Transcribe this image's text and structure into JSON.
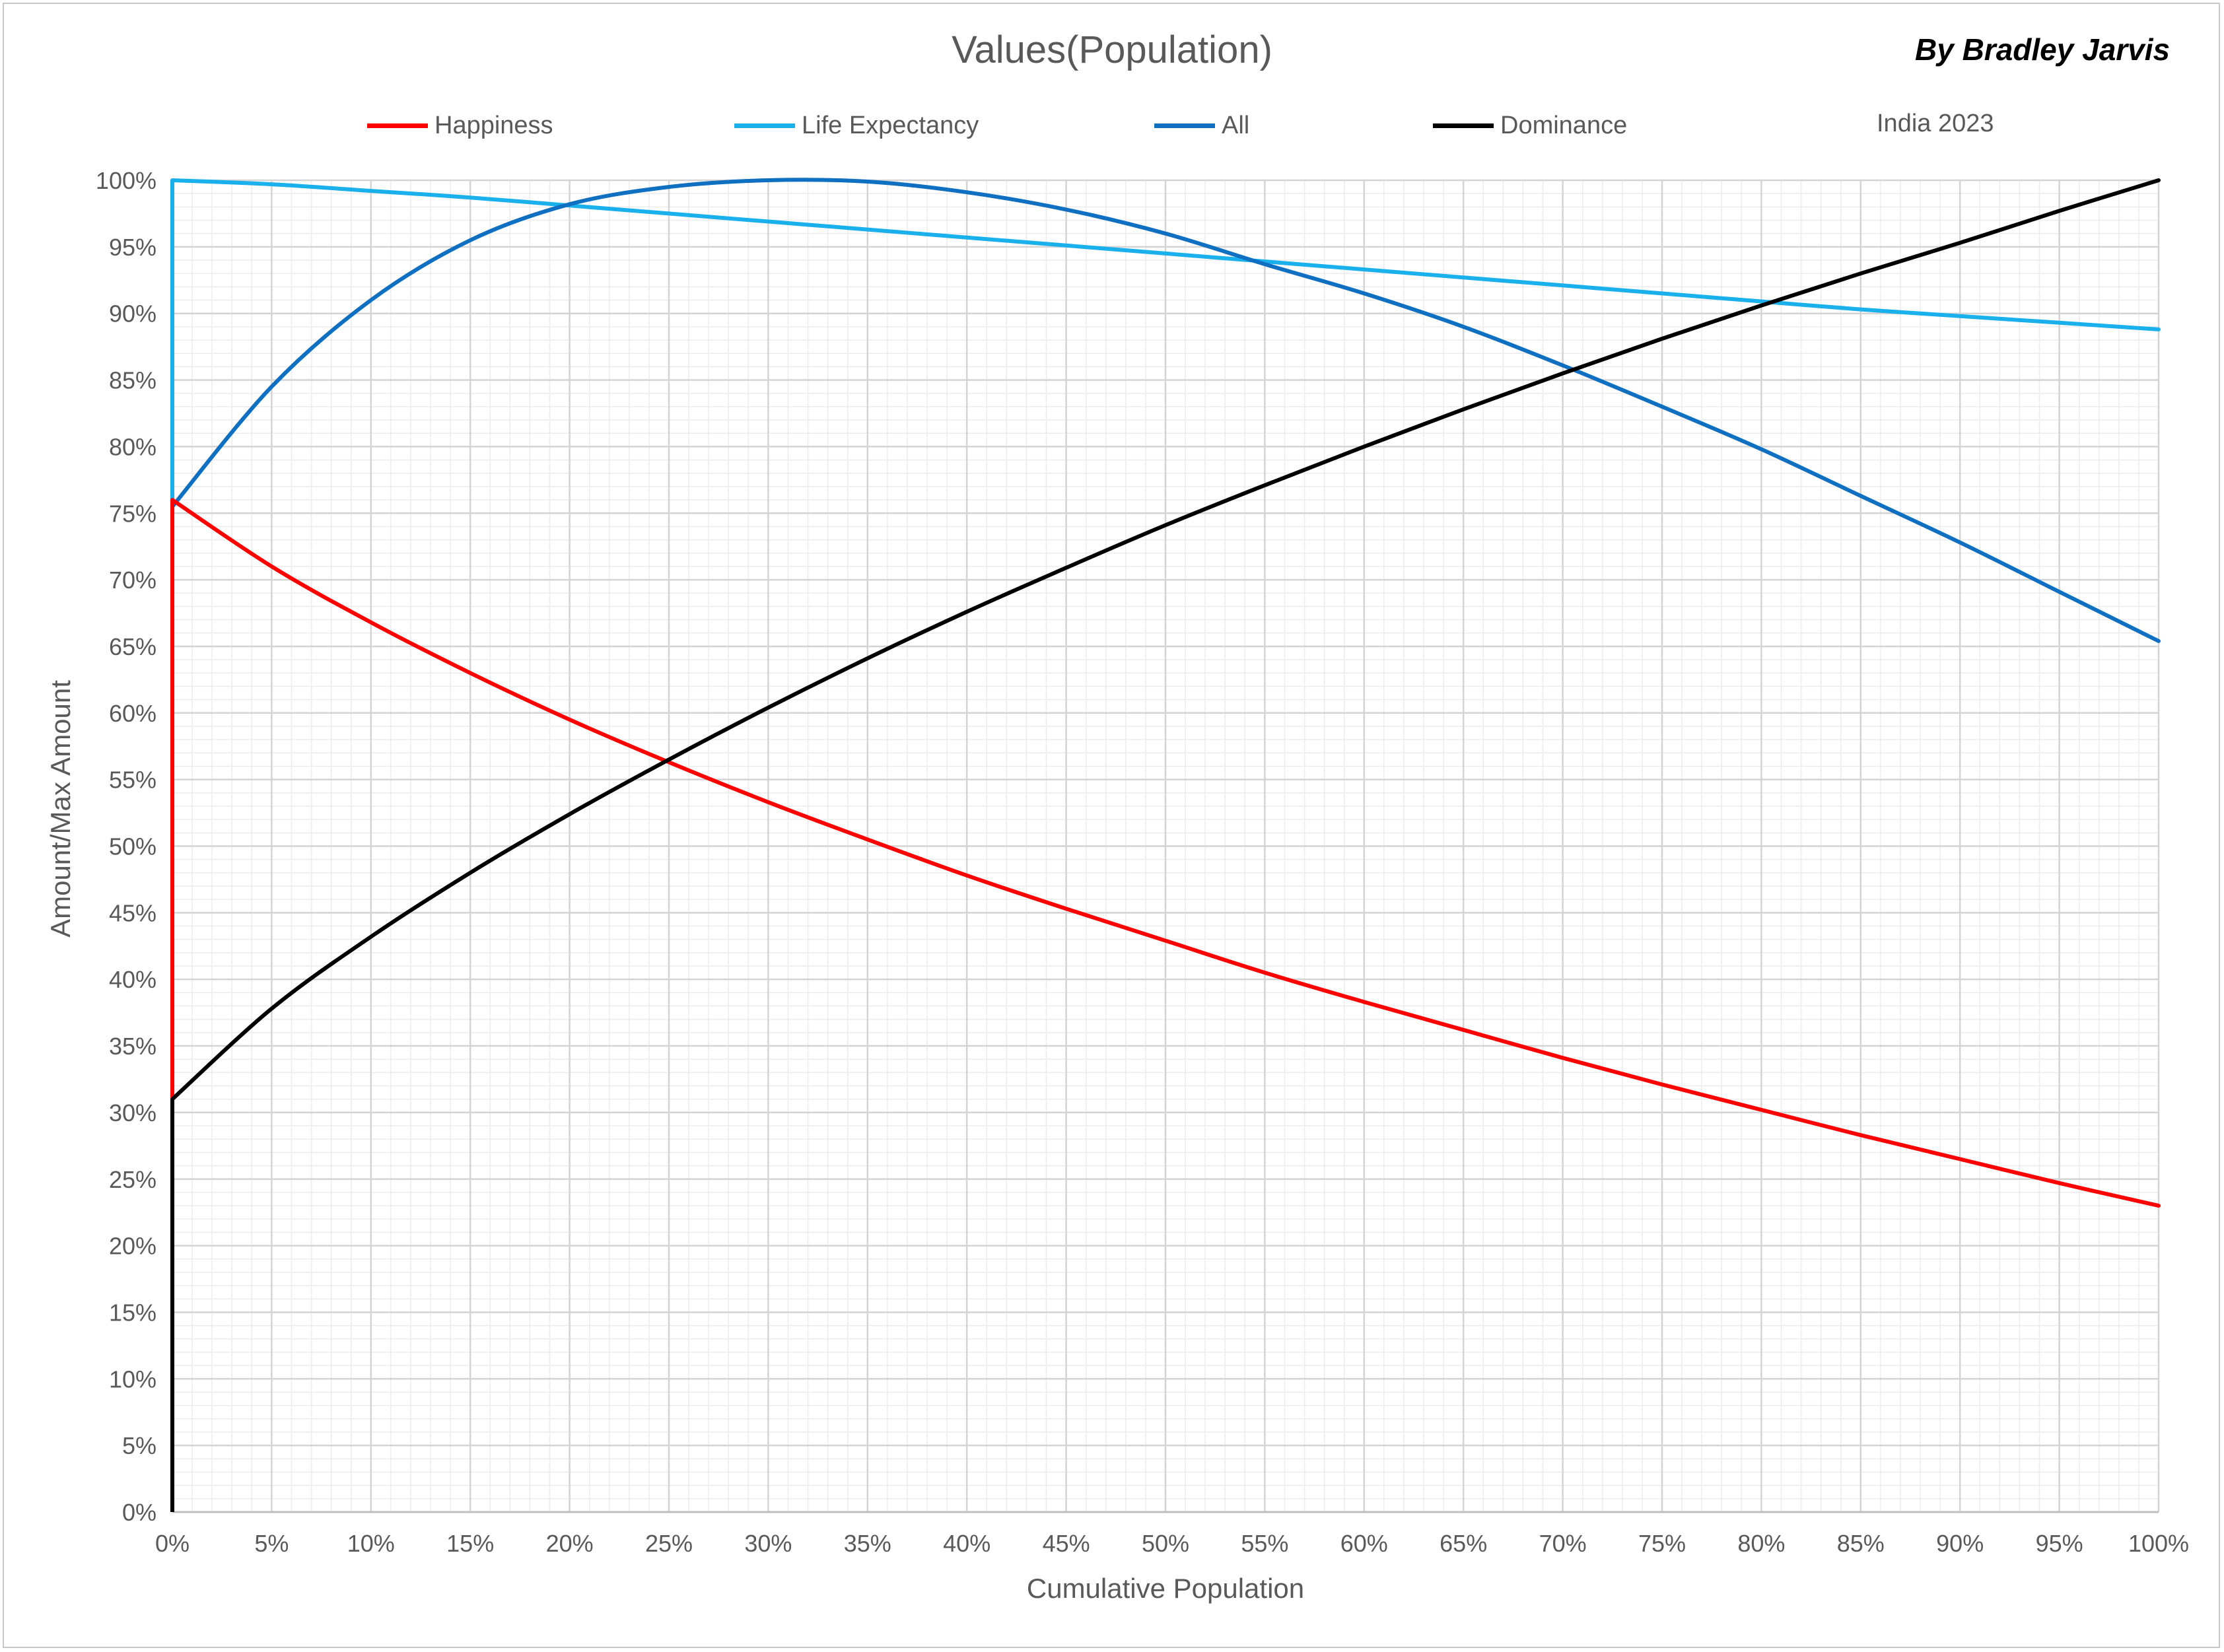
{
  "chart_data": {
    "type": "line",
    "title": "Values(Population)",
    "author": "By Bradley Jarvis",
    "note": "India 2023",
    "xlabel": "Cumulative Population",
    "ylabel": "Amount/Max Amount",
    "xlim": [
      0,
      100
    ],
    "ylim": [
      0,
      100
    ],
    "x_ticks": [
      "0%",
      "5%",
      "10%",
      "15%",
      "20%",
      "25%",
      "30%",
      "35%",
      "40%",
      "45%",
      "50%",
      "55%",
      "60%",
      "65%",
      "70%",
      "75%",
      "80%",
      "85%",
      "90%",
      "95%",
      "100%"
    ],
    "y_ticks": [
      "0%",
      "5%",
      "10%",
      "15%",
      "20%",
      "25%",
      "30%",
      "35%",
      "40%",
      "45%",
      "50%",
      "55%",
      "60%",
      "65%",
      "70%",
      "75%",
      "80%",
      "85%",
      "90%",
      "95%",
      "100%"
    ],
    "grid": true,
    "legend_position": "top",
    "x": [
      0,
      5,
      10,
      15,
      20,
      25,
      30,
      35,
      40,
      45,
      50,
      55,
      60,
      65,
      70,
      75,
      80,
      85,
      90,
      95,
      100
    ],
    "series": [
      {
        "name": "Happiness",
        "color": "#ff0000",
        "start": [
          0,
          0
        ],
        "values": [
          76,
          71,
          66.8,
          63,
          59.5,
          56.3,
          53.3,
          50.5,
          47.8,
          45.3,
          42.9,
          40.5,
          38.3,
          36.2,
          34.1,
          32.1,
          30.2,
          28.3,
          26.5,
          24.7,
          23
        ]
      },
      {
        "name": "Life Expectancy",
        "color": "#1ab0ec",
        "start": [
          0,
          75
        ],
        "values": [
          100,
          99.7,
          99.2,
          98.7,
          98.1,
          97.5,
          96.9,
          96.3,
          95.7,
          95.1,
          94.5,
          93.9,
          93.3,
          92.7,
          92.1,
          91.5,
          90.9,
          90.3,
          89.8,
          89.3,
          88.8
        ]
      },
      {
        "name": "All",
        "color": "#0f6fc0",
        "start": [
          0,
          0
        ],
        "values": [
          75.5,
          84.5,
          91,
          95.5,
          98.2,
          99.5,
          100,
          99.9,
          99.1,
          97.8,
          96,
          93.7,
          91.5,
          89,
          86.1,
          83,
          79.8,
          76.3,
          72.8,
          69.1,
          65.4
        ]
      },
      {
        "name": "Dominance",
        "color": "#000000",
        "start": [
          0,
          0
        ],
        "values": [
          31,
          37.8,
          43.2,
          48,
          52.4,
          56.5,
          60.4,
          64.1,
          67.6,
          70.9,
          74.1,
          77.1,
          80,
          82.8,
          85.5,
          88.1,
          90.6,
          93,
          95.3,
          97.7,
          100
        ]
      }
    ]
  }
}
